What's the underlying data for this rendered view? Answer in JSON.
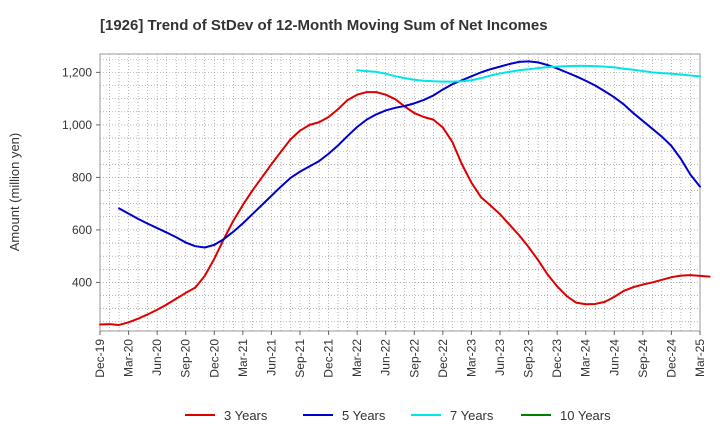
{
  "chart_data": {
    "type": "line",
    "title": "[1926]  Trend of StDev of 12-Month Moving Sum of Net Incomes",
    "ylabel": "Amount (million yen)",
    "xlabel": "",
    "y_ticks": [
      400,
      600,
      800,
      1000,
      1200
    ],
    "y_tick_labels": [
      "400",
      "600",
      "800",
      "1,000",
      "1,200"
    ],
    "ylim": [
      215,
      1270
    ],
    "x_tick_labels": [
      "Dec-19",
      "Mar-20",
      "Jun-20",
      "Sep-20",
      "Dec-20",
      "Mar-21",
      "Jun-21",
      "Sep-21",
      "Dec-21",
      "Mar-22",
      "Jun-22",
      "Sep-22",
      "Dec-22",
      "Mar-23",
      "Jun-23",
      "Sep-23",
      "Dec-23",
      "Mar-24",
      "Jun-24",
      "Sep-24",
      "Dec-24",
      "Mar-25"
    ],
    "x_range_months": [
      0,
      63
    ],
    "grid": true,
    "legend_position": "bottom",
    "series": [
      {
        "name": "3 Years",
        "color": "#dd0000",
        "points": [
          [
            0,
            240
          ],
          [
            1,
            241
          ],
          [
            2,
            238
          ],
          [
            3,
            248
          ],
          [
            4,
            262
          ],
          [
            5,
            278
          ],
          [
            6,
            296
          ],
          [
            7,
            316
          ],
          [
            8,
            338
          ],
          [
            9,
            360
          ],
          [
            10,
            380
          ],
          [
            11,
            425
          ],
          [
            12,
            490
          ],
          [
            13,
            565
          ],
          [
            14,
            635
          ],
          [
            15,
            695
          ],
          [
            16,
            750
          ],
          [
            17,
            800
          ],
          [
            18,
            850
          ],
          [
            19,
            898
          ],
          [
            20,
            945
          ],
          [
            21,
            978
          ],
          [
            22,
            1000
          ],
          [
            23,
            1010
          ],
          [
            24,
            1030
          ],
          [
            25,
            1060
          ],
          [
            26,
            1095
          ],
          [
            27,
            1115
          ],
          [
            28,
            1125
          ],
          [
            29,
            1125
          ],
          [
            30,
            1115
          ],
          [
            31,
            1098
          ],
          [
            32,
            1070
          ],
          [
            33,
            1045
          ],
          [
            34,
            1030
          ],
          [
            35,
            1020
          ],
          [
            36,
            990
          ],
          [
            37,
            935
          ],
          [
            38,
            850
          ],
          [
            39,
            780
          ],
          [
            40,
            725
          ],
          [
            41,
            693
          ],
          [
            42,
            660
          ],
          [
            43,
            620
          ],
          [
            44,
            580
          ],
          [
            45,
            535
          ],
          [
            46,
            485
          ],
          [
            47,
            430
          ],
          [
            48,
            385
          ],
          [
            49,
            348
          ],
          [
            50,
            323
          ],
          [
            51,
            317
          ],
          [
            52,
            318
          ],
          [
            53,
            326
          ],
          [
            54,
            345
          ],
          [
            55,
            368
          ],
          [
            56,
            382
          ],
          [
            57,
            392
          ],
          [
            58,
            400
          ],
          [
            59,
            410
          ],
          [
            60,
            420
          ],
          [
            61,
            426
          ],
          [
            62,
            428
          ],
          [
            63,
            425
          ],
          [
            64,
            422
          ]
        ]
      },
      {
        "name": "5 Years",
        "color": "#0000cc",
        "points": [
          [
            2,
            682
          ],
          [
            3,
            662
          ],
          [
            4,
            642
          ],
          [
            5,
            624
          ],
          [
            6,
            607
          ],
          [
            7,
            590
          ],
          [
            8,
            572
          ],
          [
            9,
            552
          ],
          [
            10,
            538
          ],
          [
            11,
            533
          ],
          [
            12,
            543
          ],
          [
            13,
            565
          ],
          [
            14,
            593
          ],
          [
            15,
            625
          ],
          [
            16,
            660
          ],
          [
            17,
            695
          ],
          [
            18,
            730
          ],
          [
            19,
            765
          ],
          [
            20,
            798
          ],
          [
            21,
            822
          ],
          [
            22,
            842
          ],
          [
            23,
            862
          ],
          [
            24,
            890
          ],
          [
            25,
            922
          ],
          [
            26,
            958
          ],
          [
            27,
            992
          ],
          [
            28,
            1020
          ],
          [
            29,
            1040
          ],
          [
            30,
            1055
          ],
          [
            31,
            1065
          ],
          [
            32,
            1072
          ],
          [
            33,
            1082
          ],
          [
            34,
            1095
          ],
          [
            35,
            1112
          ],
          [
            36,
            1135
          ],
          [
            37,
            1155
          ],
          [
            38,
            1170
          ],
          [
            39,
            1185
          ],
          [
            40,
            1200
          ],
          [
            41,
            1212
          ],
          [
            42,
            1222
          ],
          [
            43,
            1232
          ],
          [
            44,
            1240
          ],
          [
            45,
            1242
          ],
          [
            46,
            1238
          ],
          [
            47,
            1228
          ],
          [
            48,
            1215
          ],
          [
            49,
            1200
          ],
          [
            50,
            1185
          ],
          [
            51,
            1168
          ],
          [
            52,
            1150
          ],
          [
            53,
            1128
          ],
          [
            54,
            1105
          ],
          [
            55,
            1078
          ],
          [
            56,
            1045
          ],
          [
            57,
            1015
          ],
          [
            58,
            985
          ],
          [
            59,
            955
          ],
          [
            60,
            920
          ],
          [
            61,
            870
          ],
          [
            62,
            810
          ],
          [
            63,
            765
          ]
        ]
      },
      {
        "name": "7 Years",
        "color": "#00e5e5",
        "points": [
          [
            27,
            1208
          ],
          [
            28,
            1205
          ],
          [
            29,
            1202
          ],
          [
            30,
            1195
          ],
          [
            31,
            1185
          ],
          [
            32,
            1178
          ],
          [
            33,
            1172
          ],
          [
            34,
            1168
          ],
          [
            35,
            1166
          ],
          [
            36,
            1165
          ],
          [
            37,
            1165
          ],
          [
            38,
            1166
          ],
          [
            39,
            1170
          ],
          [
            40,
            1178
          ],
          [
            41,
            1188
          ],
          [
            42,
            1196
          ],
          [
            43,
            1202
          ],
          [
            44,
            1208
          ],
          [
            45,
            1212
          ],
          [
            46,
            1216
          ],
          [
            47,
            1220
          ],
          [
            48,
            1222
          ],
          [
            49,
            1224
          ],
          [
            50,
            1225
          ],
          [
            51,
            1225
          ],
          [
            52,
            1224
          ],
          [
            53,
            1222
          ],
          [
            54,
            1219
          ],
          [
            55,
            1214
          ],
          [
            56,
            1210
          ],
          [
            57,
            1205
          ],
          [
            58,
            1200
          ],
          [
            59,
            1197
          ],
          [
            60,
            1195
          ],
          [
            61,
            1192
          ],
          [
            62,
            1188
          ],
          [
            63,
            1185
          ]
        ]
      },
      {
        "name": "10 Years",
        "color": "#008000",
        "points": []
      }
    ]
  }
}
